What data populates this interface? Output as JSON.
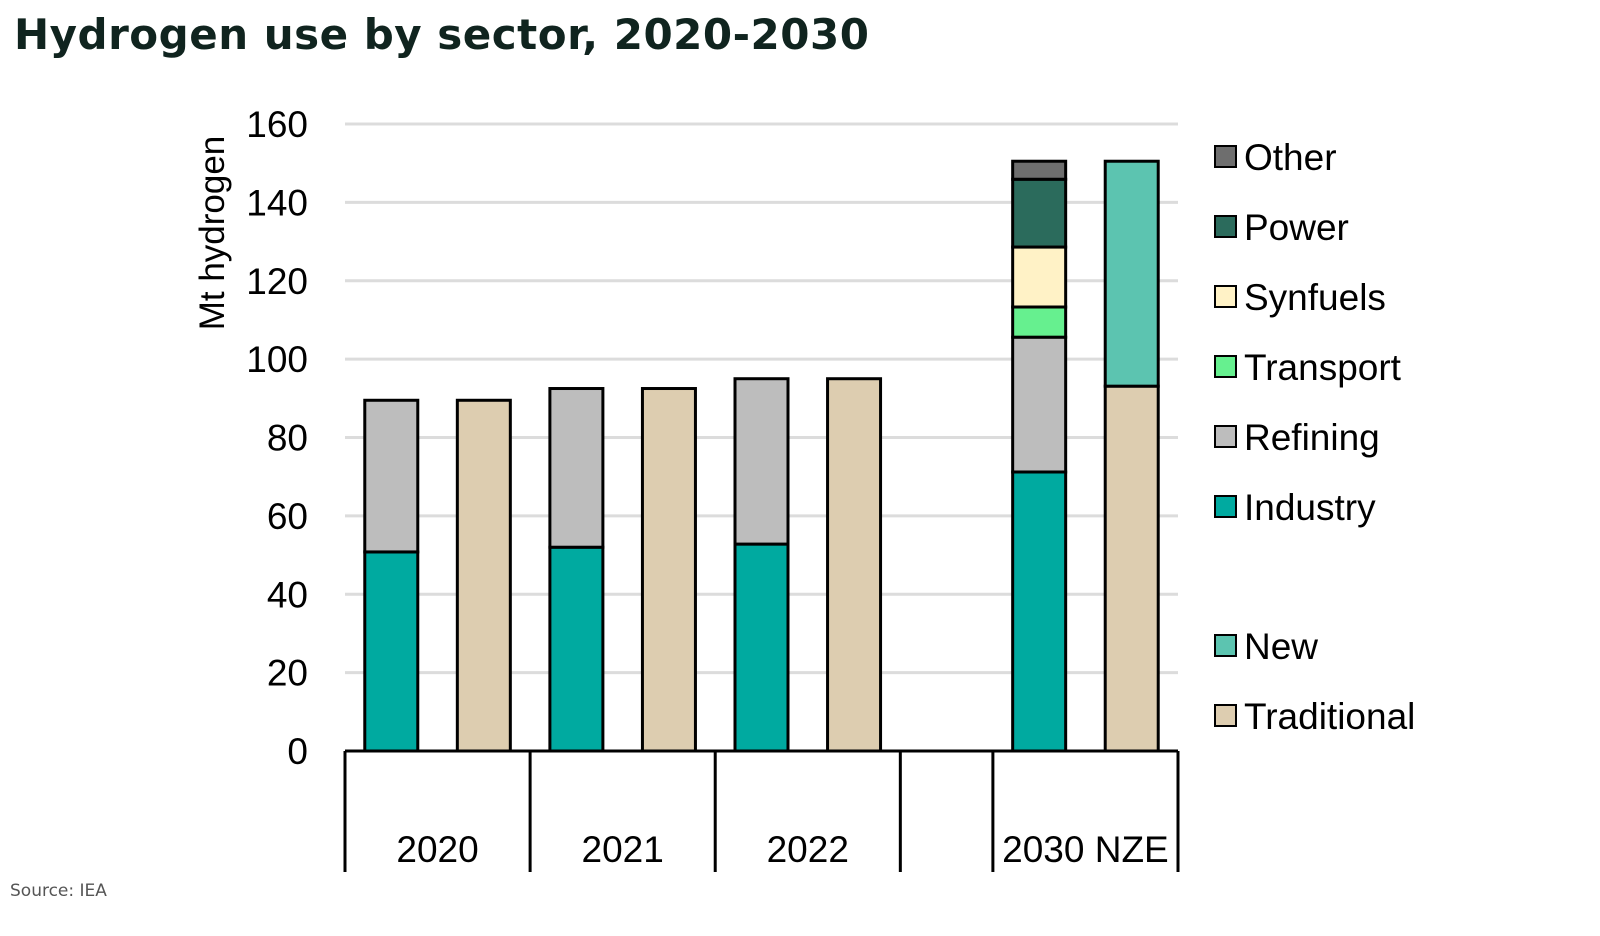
{
  "title": "Hydrogen use by sector, 2020-2030",
  "source": "Source: IEA",
  "chart_data": {
    "type": "bar",
    "stacked": true,
    "title": "Hydrogen use by sector, 2020-2030",
    "ylabel": "Mt hydrogen",
    "xlabel": "",
    "ylim": [
      0,
      160
    ],
    "yticks": [
      0,
      20,
      40,
      60,
      80,
      100,
      120,
      140,
      160
    ],
    "grid": true,
    "legend_position": "right",
    "groups": [
      "2020",
      "2021",
      "2022",
      "",
      "2030 NZE"
    ],
    "legend": [
      {
        "name": "Other",
        "color": "#6e6e6e"
      },
      {
        "name": "Power",
        "color": "#2b6b5c"
      },
      {
        "name": "Synfuels",
        "color": "#fff2c6"
      },
      {
        "name": "Transport",
        "color": "#66f08f"
      },
      {
        "name": "Refining",
        "color": "#bdbdbd"
      },
      {
        "name": "Industry",
        "color": "#00aaa0"
      },
      {
        "name": "New",
        "color": "#5cc4b0"
      },
      {
        "name": "Traditional",
        "color": "#ddcdb0"
      }
    ],
    "bars": [
      {
        "group": "2020",
        "breakdown": "sector",
        "segments": {
          "Industry": 50.8,
          "Refining": 38.7
        }
      },
      {
        "group": "2020",
        "breakdown": "type",
        "segments": {
          "Traditional": 89.5
        }
      },
      {
        "group": "2021",
        "breakdown": "sector",
        "segments": {
          "Industry": 52.0,
          "Refining": 40.5
        }
      },
      {
        "group": "2021",
        "breakdown": "type",
        "segments": {
          "Traditional": 92.5
        }
      },
      {
        "group": "2022",
        "breakdown": "sector",
        "segments": {
          "Industry": 52.8,
          "Refining": 42.2
        }
      },
      {
        "group": "2022",
        "breakdown": "type",
        "segments": {
          "Traditional": 95.0
        }
      },
      {
        "group": "2030 NZE",
        "breakdown": "sector",
        "segments": {
          "Industry": 71.2,
          "Refining": 34.4,
          "Transport": 7.7,
          "Synfuels": 15.3,
          "Power": 17.3,
          "Other": 4.6
        }
      },
      {
        "group": "2030 NZE",
        "breakdown": "type",
        "segments": {
          "Traditional": 93.1,
          "New": 57.4
        }
      }
    ]
  }
}
